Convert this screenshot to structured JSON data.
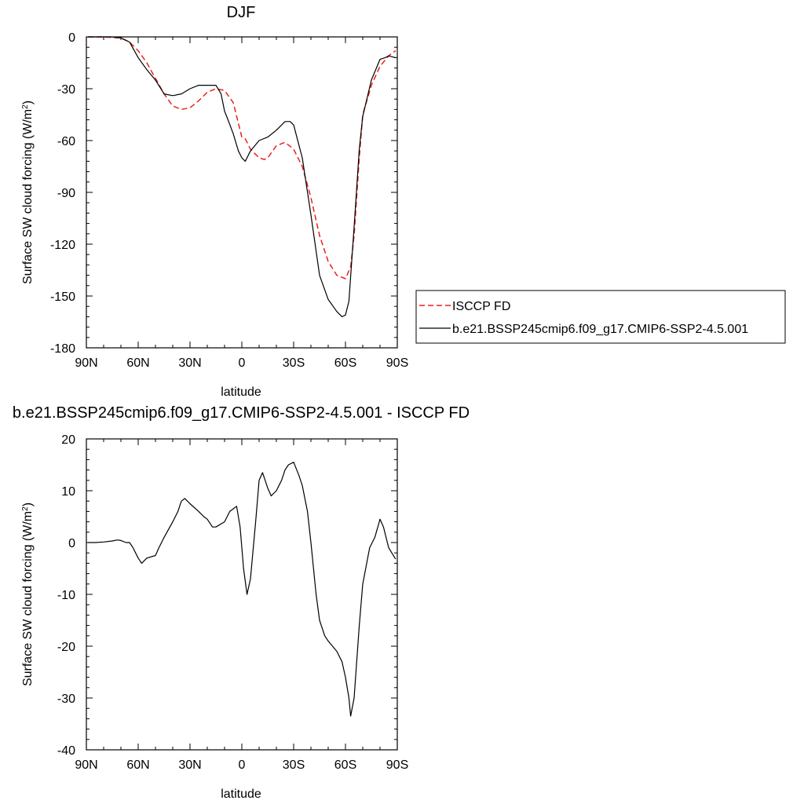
{
  "chart_data": [
    {
      "type": "line",
      "title": "DJF",
      "xlabel": "latitude",
      "ylabel_main": "Surface SW cloud forcing (W/m",
      "ylabel_sup": "2",
      "ylabel_close": ")",
      "xlim": [
        90,
        -90
      ],
      "ylim": [
        -180,
        0
      ],
      "x_ticks": [
        90,
        60,
        30,
        0,
        -30,
        -60,
        -90
      ],
      "x_tick_labels": [
        "90N",
        "60N",
        "30N",
        "0",
        "30S",
        "60S",
        "90S"
      ],
      "y_ticks": [
        0,
        -30,
        -60,
        -90,
        -120,
        -150,
        -180
      ],
      "y_tick_labels": [
        "0",
        "-30",
        "-60",
        "-90",
        "-120",
        "-150",
        "-180"
      ],
      "legend_position": "right",
      "series": [
        {
          "name": "ISCCP FD",
          "color": "#e8201c",
          "dash": "dashed",
          "x": [
            89,
            85,
            80,
            75,
            70,
            65,
            60,
            55,
            50,
            45,
            40,
            35,
            30,
            25,
            20,
            15,
            10,
            5,
            2,
            0,
            -2,
            -5,
            -10,
            -13,
            -15,
            -20,
            -25,
            -30,
            -35,
            -40,
            -45,
            -50,
            -55,
            -60,
            -63,
            -65,
            -68,
            -70,
            -75,
            -80,
            -85,
            -89
          ],
          "values": [
            0,
            0,
            0,
            -0.3,
            -0.7,
            -3,
            -8,
            -15,
            -24,
            -33,
            -40,
            -42,
            -41,
            -37,
            -32,
            -30,
            -31,
            -38,
            -50,
            -58,
            -59,
            -65,
            -70,
            -71,
            -70,
            -63,
            -61,
            -65,
            -75,
            -93,
            -115,
            -130,
            -138,
            -140,
            -133,
            -115,
            -70,
            -45,
            -28,
            -17,
            -11,
            -8
          ]
        },
        {
          "name": "b.e21.BSSP245cmip6.f09_g17.CMIP6-SSP2-4.5.001",
          "color": "#000000",
          "dash": "solid",
          "x": [
            89,
            85,
            80,
            75,
            70,
            65,
            60,
            55,
            50,
            45,
            40,
            35,
            30,
            25,
            20,
            15,
            12,
            10,
            8,
            5,
            2,
            0,
            -2,
            -5,
            -10,
            -15,
            -20,
            -25,
            -28,
            -30,
            -35,
            -40,
            -45,
            -50,
            -55,
            -58,
            -60,
            -62,
            -65,
            -68,
            -70,
            -75,
            -80,
            -83,
            -85,
            -89
          ],
          "values": [
            0,
            0,
            0,
            0,
            -0.5,
            -3,
            -12,
            -19,
            -25,
            -33,
            -34,
            -33,
            -30,
            -28,
            -28,
            -28,
            -33,
            -43,
            -48,
            -56,
            -66,
            -70,
            -72,
            -66,
            -60,
            -58,
            -54,
            -49,
            -49,
            -51,
            -70,
            -103,
            -138,
            -152,
            -159,
            -162,
            -161,
            -153,
            -110,
            -65,
            -46,
            -25,
            -13,
            -12,
            -11,
            -12
          ]
        }
      ]
    },
    {
      "type": "line",
      "title": "b.e21.BSSP245cmip6.f09_g17.CMIP6-SSP2-4.5.001 - ISCCP FD",
      "xlabel": "latitude",
      "ylabel_main": "Surface SW cloud forcing (W/m",
      "ylabel_sup": "2",
      "ylabel_close": ")",
      "xlim": [
        90,
        -90
      ],
      "ylim": [
        -40,
        20
      ],
      "x_ticks": [
        90,
        60,
        30,
        0,
        -30,
        -60,
        -90
      ],
      "x_tick_labels": [
        "90N",
        "60N",
        "30N",
        "0",
        "30S",
        "60S",
        "90S"
      ],
      "y_ticks": [
        20,
        10,
        0,
        -10,
        -20,
        -30,
        -40
      ],
      "y_tick_labels": [
        "20",
        "10",
        "0",
        "-10",
        "-20",
        "-30",
        "-40"
      ],
      "series": [
        {
          "color": "#000000",
          "dash": "solid",
          "x": [
            89,
            85,
            80,
            75,
            72,
            70,
            67,
            65,
            63,
            60,
            58,
            55,
            50,
            48,
            45,
            40,
            37,
            35,
            33,
            30,
            25,
            22,
            20,
            17,
            15,
            10,
            7,
            5,
            3,
            1,
            -1,
            -3,
            -5,
            -8,
            -10,
            -12,
            -15,
            -17,
            -20,
            -23,
            -25,
            -27,
            -30,
            -33,
            -35,
            -38,
            -40,
            -43,
            -45,
            -48,
            -50,
            -55,
            -58,
            -60,
            -62,
            -63,
            -65,
            -68,
            -70,
            -74,
            -77,
            -80,
            -82,
            -85,
            -89
          ],
          "values": [
            0,
            0,
            0.1,
            0.3,
            0.5,
            0.4,
            0,
            0,
            -1,
            -3,
            -4,
            -3,
            -2.5,
            -1,
            1,
            4,
            6,
            8,
            8.5,
            7.5,
            6,
            5,
            4.5,
            3,
            3,
            4,
            6,
            6.5,
            7,
            3,
            -5,
            -10,
            -7,
            4,
            12,
            13.5,
            10.5,
            9,
            10,
            12,
            14,
            15,
            15.5,
            13,
            11,
            6,
            0,
            -10,
            -15,
            -18,
            -19,
            -21,
            -23,
            -26,
            -30,
            -33.5,
            -30,
            -16,
            -8,
            -1,
            1,
            4.5,
            3,
            -1,
            -3.2
          ]
        }
      ]
    }
  ]
}
